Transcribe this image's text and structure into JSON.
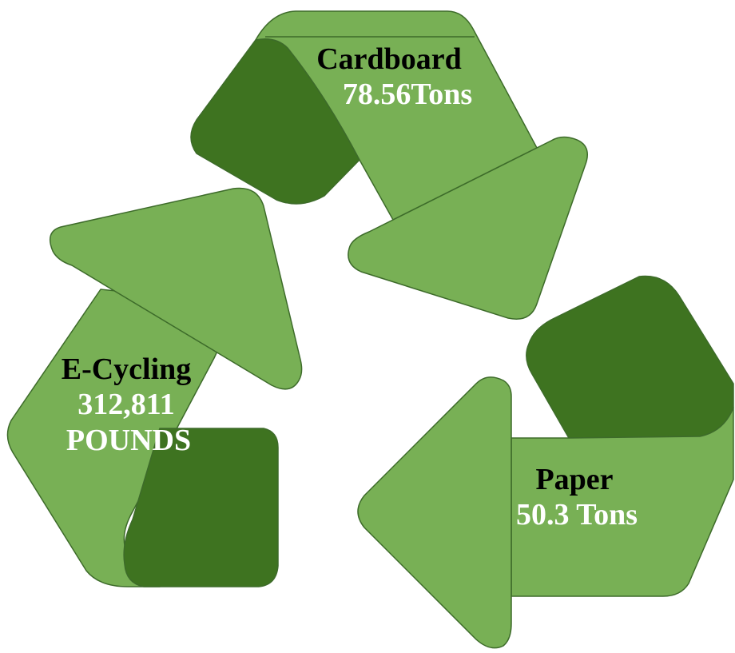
{
  "colors": {
    "band_light": "#78b055",
    "band_dark": "#3e7320",
    "outline": "#3d6b2a",
    "title_text": "#000000",
    "value_text": "#ffffff"
  },
  "arrows": {
    "cardboard": {
      "title": "Cardboard",
      "value": "78.56Tons"
    },
    "paper": {
      "title": "Paper",
      "value": "50.3 Tons"
    },
    "ecycling": {
      "title": "E-Cycling",
      "value_line1": "312,811",
      "value_line2": "POUNDS"
    }
  }
}
